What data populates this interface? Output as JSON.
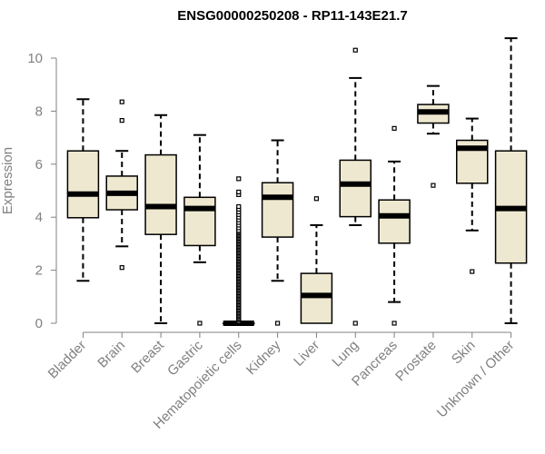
{
  "chart_data": {
    "type": "boxplot",
    "title": "ENSG00000250208 - RP11-143E21.7",
    "xlabel": "",
    "ylabel": "Expression",
    "ylim": [
      0,
      10.7
    ],
    "yticks": [
      0,
      2,
      4,
      6,
      8,
      10
    ],
    "grid": false,
    "colors": {
      "box_fill": "#EEE8D0",
      "box_stroke": "#000000",
      "axis": "#808080",
      "tick_text": "#808080",
      "title": "#000000"
    },
    "categories": [
      "Bladder",
      "Brain",
      "Breast",
      "Gastric",
      "Hematopoietic cells",
      "Kidney",
      "Liver",
      "Lung",
      "Pancreas",
      "Prostate",
      "Skin",
      "Unknown / Other"
    ],
    "boxes": [
      {
        "category": "Bladder",
        "whisker_low": 1.6,
        "q1": 3.98,
        "median": 4.87,
        "q3": 6.5,
        "whisker_high": 8.45,
        "outliers": []
      },
      {
        "category": "Brain",
        "whisker_low": 2.9,
        "q1": 4.28,
        "median": 4.9,
        "q3": 5.55,
        "whisker_high": 6.5,
        "outliers": [
          2.1,
          7.65,
          8.35
        ]
      },
      {
        "category": "Breast",
        "whisker_low": 0.0,
        "q1": 3.35,
        "median": 4.4,
        "q3": 6.35,
        "whisker_high": 7.85,
        "outliers": []
      },
      {
        "category": "Gastric",
        "whisker_low": 2.3,
        "q1": 2.93,
        "median": 4.33,
        "q3": 4.75,
        "whisker_high": 7.1,
        "outliers": [
          0.0
        ]
      },
      {
        "category": "Hematopoietic cells",
        "whisker_low": 0.0,
        "q1": 0.0,
        "median": 0.0,
        "q3": 0.0,
        "whisker_high": 0.0,
        "outliers": [
          0.05,
          0.1,
          0.15,
          0.2,
          0.25,
          0.3,
          0.35,
          0.4,
          0.45,
          0.5,
          0.55,
          0.6,
          0.65,
          0.7,
          0.75,
          0.8,
          0.85,
          0.9,
          0.95,
          1.0,
          1.05,
          1.1,
          1.15,
          1.2,
          1.25,
          1.3,
          1.35,
          1.4,
          1.45,
          1.5,
          1.55,
          1.6,
          1.65,
          1.7,
          1.75,
          1.8,
          1.85,
          1.9,
          1.95,
          2.0,
          2.05,
          2.1,
          2.15,
          2.2,
          2.25,
          2.3,
          2.35,
          2.4,
          2.45,
          2.5,
          2.55,
          2.6,
          2.65,
          2.7,
          2.75,
          2.8,
          2.85,
          2.9,
          2.95,
          3.0,
          3.05,
          3.1,
          3.15,
          3.2,
          3.25,
          3.3,
          3.35,
          3.4,
          3.45,
          3.5,
          3.6,
          3.7,
          3.8,
          3.9,
          4.0,
          4.1,
          4.2,
          4.3,
          4.4,
          4.85,
          4.95,
          5.45
        ]
      },
      {
        "category": "Kidney",
        "whisker_low": 1.6,
        "q1": 3.25,
        "median": 4.75,
        "q3": 5.3,
        "whisker_high": 6.9,
        "outliers": [
          0.0
        ]
      },
      {
        "category": "Liver",
        "whisker_low": 0.0,
        "q1": 0.0,
        "median": 1.05,
        "q3": 1.88,
        "whisker_high": 3.7,
        "outliers": [
          4.7
        ]
      },
      {
        "category": "Lung",
        "whisker_low": 3.7,
        "q1": 4.02,
        "median": 5.25,
        "q3": 6.15,
        "whisker_high": 9.25,
        "outliers": [
          0.0,
          10.3
        ]
      },
      {
        "category": "Pancreas",
        "whisker_low": 0.8,
        "q1": 3.02,
        "median": 4.05,
        "q3": 4.65,
        "whisker_high": 6.1,
        "outliers": [
          0.0,
          7.35
        ]
      },
      {
        "category": "Prostate",
        "whisker_low": 7.15,
        "q1": 7.55,
        "median": 7.97,
        "q3": 8.25,
        "whisker_high": 8.95,
        "outliers": [
          5.2
        ]
      },
      {
        "category": "Skin",
        "whisker_low": 3.5,
        "q1": 5.28,
        "median": 6.6,
        "q3": 6.9,
        "whisker_high": 7.72,
        "outliers": [
          1.95
        ]
      },
      {
        "category": "Unknown / Other",
        "whisker_low": 0.0,
        "q1": 2.27,
        "median": 4.33,
        "q3": 6.5,
        "whisker_high": 10.75,
        "outliers": []
      }
    ]
  }
}
